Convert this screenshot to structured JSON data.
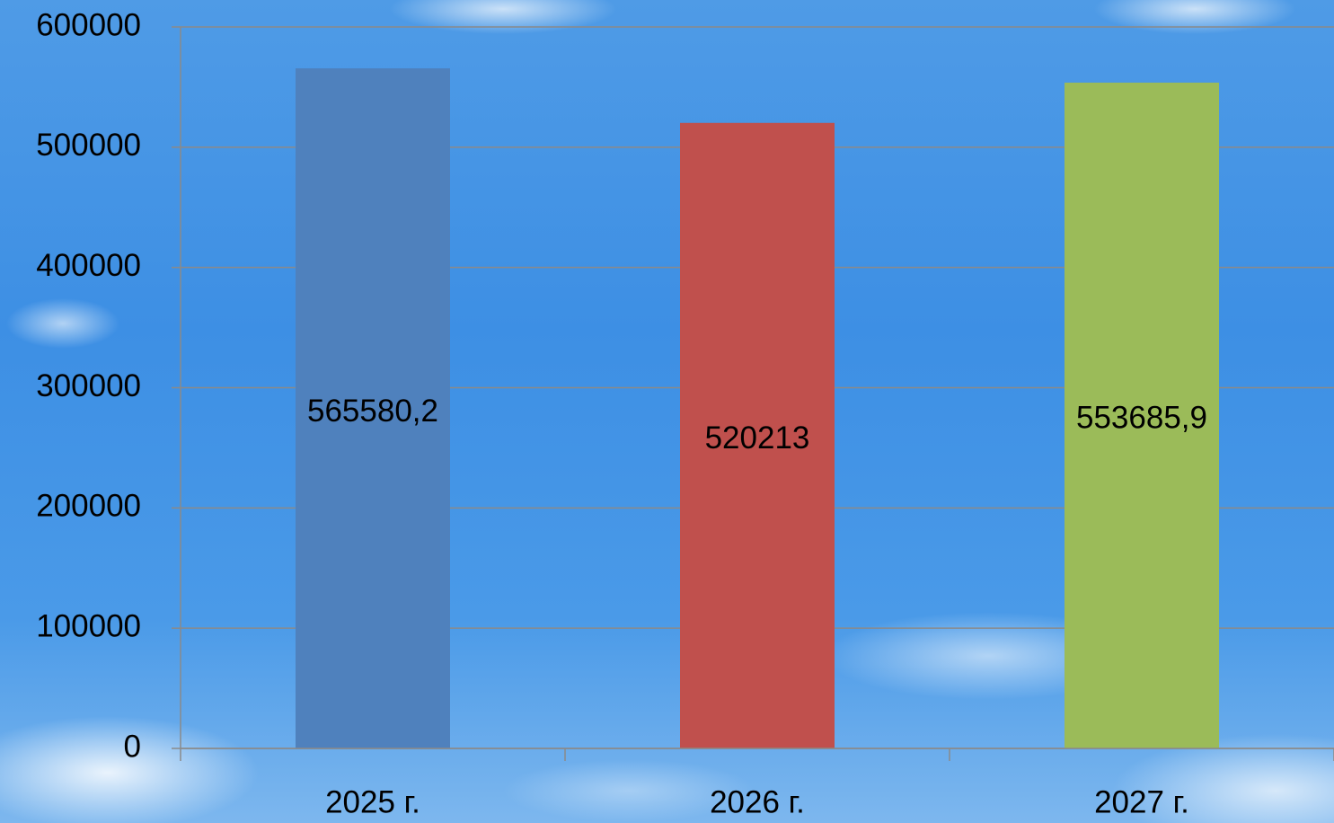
{
  "chart_data": {
    "type": "bar",
    "categories": [
      "2025 г.",
      "2026 г.",
      "2027 г."
    ],
    "values": [
      565580.2,
      520213,
      553685.9
    ],
    "value_labels": [
      "565580,2",
      "520213",
      "553685,9"
    ],
    "colors": [
      "#4f81bd",
      "#c0504d",
      "#9bbb59"
    ],
    "ylim": [
      0,
      600000
    ],
    "yticks": [
      0,
      100000,
      200000,
      300000,
      400000,
      500000,
      600000
    ],
    "grid": true
  }
}
